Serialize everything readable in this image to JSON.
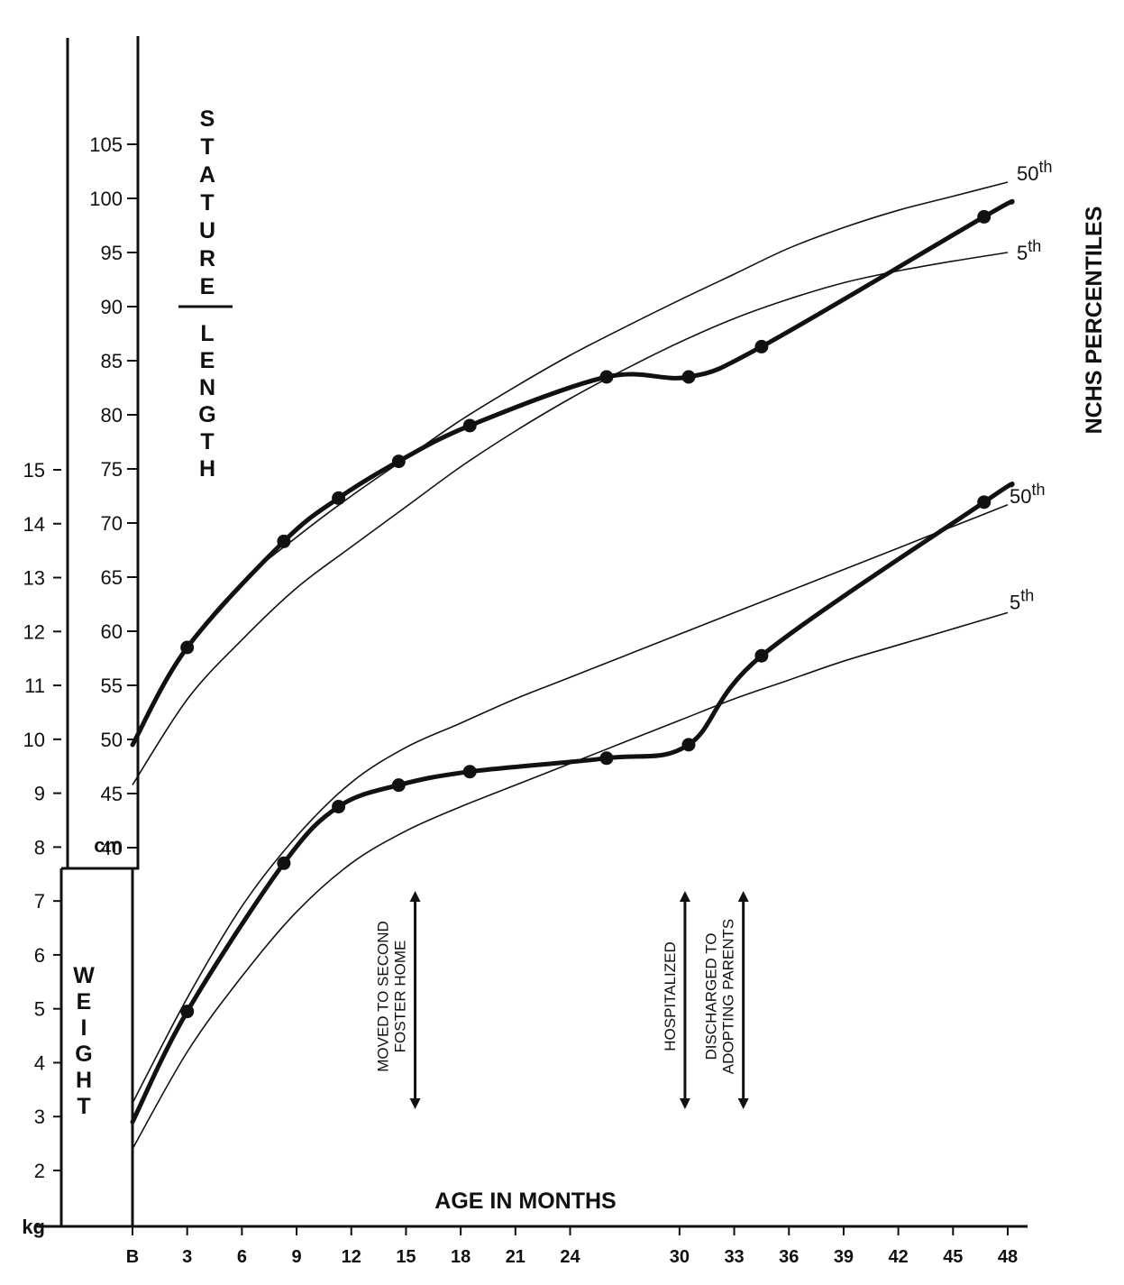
{
  "chart_data": {
    "type": "line",
    "title": "",
    "xlabel": "AGE IN MONTHS",
    "right_label": "NCHS PERCENTILES",
    "stature_label": {
      "top": "STATURE",
      "bottom": "LENGTH"
    },
    "weight_label": "WEIGHT",
    "xlim": [
      0,
      48
    ],
    "x_ticks": [
      "B",
      "3",
      "6",
      "9",
      "12",
      "15",
      "18",
      "21",
      "24",
      "30",
      "33",
      "36",
      "39",
      "42",
      "45",
      "48"
    ],
    "x_tick_values": [
      0,
      3,
      6,
      9,
      12,
      15,
      18,
      21,
      24,
      30,
      33,
      36,
      39,
      42,
      45,
      48
    ],
    "stature_axis": {
      "unit": "cm",
      "range": [
        40,
        105
      ],
      "ticks": [
        "40",
        "45",
        "50",
        "55",
        "60",
        "65",
        "70",
        "75",
        "80",
        "85",
        "90",
        "95",
        "100",
        "105"
      ]
    },
    "weight_axis": {
      "unit": "kg",
      "range": [
        2,
        15
      ],
      "ticks": [
        "2",
        "3",
        "4",
        "5",
        "6",
        "7",
        "8",
        "9",
        "10",
        "11",
        "12",
        "13",
        "14",
        "15"
      ]
    },
    "stature_series": [
      {
        "name": "50th",
        "sup": "th",
        "base": "50",
        "x": [
          0,
          3,
          6,
          9,
          12,
          15,
          18,
          21,
          24,
          27,
          30,
          33,
          36,
          39,
          42,
          45,
          48
        ],
        "y": [
          49.5,
          58.5,
          64.5,
          68.7,
          72.5,
          76,
          79.5,
          82.6,
          85.5,
          88.1,
          90.6,
          93,
          95.4,
          97.3,
          98.9,
          100.2,
          101.5
        ]
      },
      {
        "name": "5th",
        "sup": "th",
        "base": "5",
        "x": [
          0,
          3,
          6,
          9,
          12,
          15,
          18,
          21,
          24,
          27,
          30,
          33,
          36,
          39,
          42,
          45,
          48
        ],
        "y": [
          45.8,
          53.7,
          59.2,
          64,
          67.8,
          71.5,
          75.2,
          78.5,
          81.5,
          84.2,
          86.7,
          88.9,
          90.7,
          92.2,
          93.3,
          94.2,
          95
        ]
      }
    ],
    "weight_series": [
      {
        "name": "50th",
        "sup": "th",
        "base": "50",
        "x": [
          0,
          3,
          6,
          9,
          12,
          15,
          18,
          21,
          24,
          27,
          30,
          33,
          36,
          39,
          42,
          45,
          48
        ],
        "y": [
          3.25,
          5.2,
          6.9,
          8.2,
          9.2,
          9.85,
          10.3,
          10.75,
          11.15,
          11.55,
          11.95,
          12.35,
          12.75,
          13.15,
          13.55,
          13.95,
          14.35
        ]
      },
      {
        "name": "5th",
        "sup": "th",
        "base": "5",
        "x": [
          0,
          3,
          6,
          9,
          12,
          15,
          18,
          21,
          24,
          27,
          30,
          33,
          36,
          39,
          42,
          45,
          48
        ],
        "y": [
          2.4,
          4.2,
          5.6,
          6.8,
          7.7,
          8.3,
          8.75,
          9.15,
          9.55,
          9.95,
          10.35,
          10.75,
          11.1,
          11.45,
          11.75,
          12.05,
          12.35
        ]
      }
    ],
    "patient_stature": {
      "x": [
        0,
        3,
        8.3,
        11.3,
        14.6,
        18.5,
        26,
        30.5,
        34.5,
        46.7
      ],
      "y": [
        49.5,
        58.5,
        68.3,
        72.3,
        75.7,
        79,
        83.5,
        83.5,
        86.3,
        98.3
      ]
    },
    "patient_weight": {
      "x": [
        0,
        3,
        8.3,
        11.3,
        14.6,
        18.5,
        26,
        30.5,
        34.5,
        46.7
      ],
      "y": [
        2.9,
        4.95,
        7.7,
        8.75,
        9.15,
        9.4,
        9.65,
        9.9,
        11.55,
        14.4
      ]
    },
    "events": [
      {
        "x": 15.5,
        "lines": [
          "MOVED TO SECOND",
          "FOSTER HOME"
        ]
      },
      {
        "x": 30.3,
        "lines": [
          "HOSPITALIZED"
        ]
      },
      {
        "x": 33.5,
        "lines": [
          "DISCHARGED TO",
          "ADOPTING PARENTS"
        ]
      }
    ],
    "colors": {
      "ink": "#111111",
      "background": "#ffffff"
    }
  }
}
